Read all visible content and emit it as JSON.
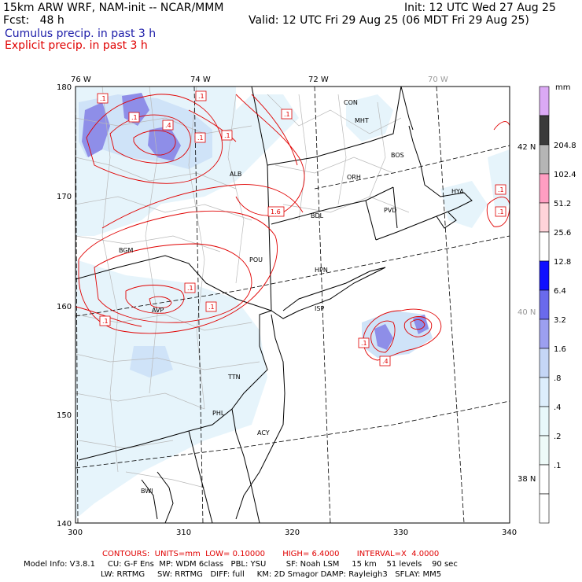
{
  "header": {
    "model_line": "15km ARW WRF, NAM-init -- NCAR/MMM",
    "init_line": "Init: 12 UTC Wed 27 Aug 25",
    "fcst_line": "Fcst:   48 h",
    "valid_line": "Valid: 12 UTC Fri 29 Aug 25 (06 MDT Fri 29 Aug 25)",
    "cumulus_line": "Cumulus precip. in past 3 h",
    "explicit_line": "Explicit precip. in past 3 h"
  },
  "colors": {
    "cumulus_text": "#1a1aa8",
    "explicit_text": "#e00000",
    "contour_line": "#e00000",
    "state_border": "#000000",
    "county_border": "#bbbbbb",
    "lat_lon_line": "#000000"
  },
  "map": {
    "longitude_labels": [
      "76 W",
      "74 W",
      "72 W",
      "70 W"
    ],
    "latitude_labels": [
      "42 N",
      "40 N",
      "38 N"
    ],
    "x_axis_ticks": [
      "300",
      "310",
      "320",
      "330",
      "340"
    ],
    "y_axis_ticks": [
      "140",
      "150",
      "160",
      "170",
      "180"
    ],
    "stations": [
      "CON",
      "MHT",
      "BOS",
      "ORH",
      "ALB",
      "BDL",
      "PVD",
      "HYA",
      "BGM",
      "POU",
      "HPN",
      "ISP",
      "AVP",
      "TTN",
      "PHL",
      "ACY",
      "BWI"
    ],
    "contour_labels": [
      ".1",
      ".1",
      ".1",
      ".4",
      ".1",
      ".1",
      ".1",
      "1.6",
      ".1",
      ".1",
      ".1",
      ".1",
      ".1",
      ".1",
      ".4"
    ]
  },
  "legend": {
    "unit": "mm",
    "labels": [
      "204.8",
      "102.4",
      "51.2",
      "25.6",
      "12.8",
      "6.4",
      "3.2",
      "1.6",
      ".8",
      ".4",
      ".2",
      ".1"
    ],
    "swatch_colors": [
      "#dba9f5",
      "#3a3a3a",
      "#b5b5b5",
      "#ff9ec2",
      "#ffd3da",
      "#ffffff",
      "#1010ff",
      "#6a6aec",
      "#9c9ff0",
      "#c5d6f6",
      "#ddeefc",
      "#e8f8fb",
      "#eefaf8",
      "#ffffff",
      "#ffffff"
    ]
  },
  "footer": {
    "contours_line": "CONTOURS:  UNITS=mm  LOW= 0.10000       HIGH= 6.4000       INTERVAL=X  4.0000",
    "model_info_line": "Model Info: V3.8.1     CU: G-F Ens  MP: WDM 6class   PBL: YSU        SF: Noah LSM     15 km    51 levels    90 sec",
    "model_info_line2": "LW: RRTMG     SW: RRTMG   DIFF: full     KM: 2D Smagor DAMP: Rayleigh3   SFLAY: MM5"
  }
}
